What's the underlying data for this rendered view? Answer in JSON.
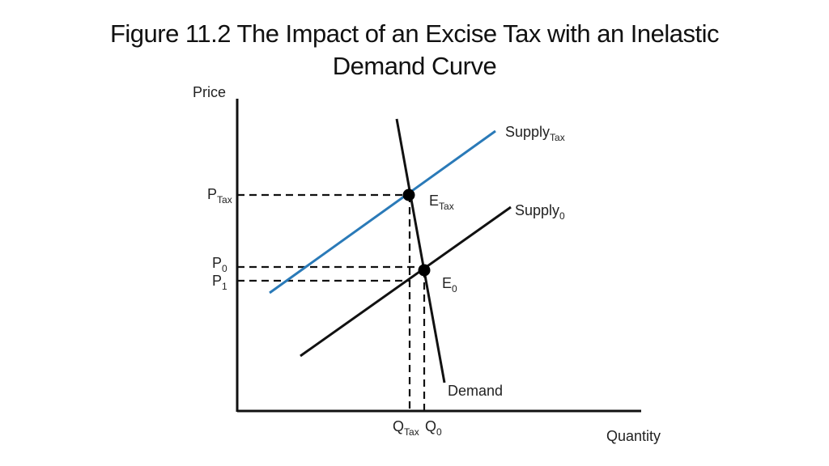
{
  "title": {
    "line1": "Figure 11.2 The Impact of an Excise Tax with an Inelastic",
    "line2": "Demand Curve"
  },
  "axes": {
    "y_label": "Price",
    "x_label": "Quantity"
  },
  "curves": {
    "supply_tax": {
      "base": "Supply",
      "sub": "Tax",
      "color": "#2a7ab8"
    },
    "supply_0": {
      "base": "Supply",
      "sub": "0",
      "color": "#111111"
    },
    "demand": {
      "label": "Demand",
      "color": "#111111"
    }
  },
  "points": {
    "e_tax": {
      "base": "E",
      "sub": "Tax"
    },
    "e_0": {
      "base": "E",
      "sub": "0"
    }
  },
  "price_levels": {
    "p_tax": {
      "base": "P",
      "sub": "Tax"
    },
    "p_0": {
      "base": "P",
      "sub": "0"
    },
    "p_1": {
      "base": "P",
      "sub": "1"
    }
  },
  "quantity_levels": {
    "q_tax": {
      "base": "Q",
      "sub": "Tax"
    },
    "q_0": {
      "base": "Q",
      "sub": "0"
    }
  }
}
